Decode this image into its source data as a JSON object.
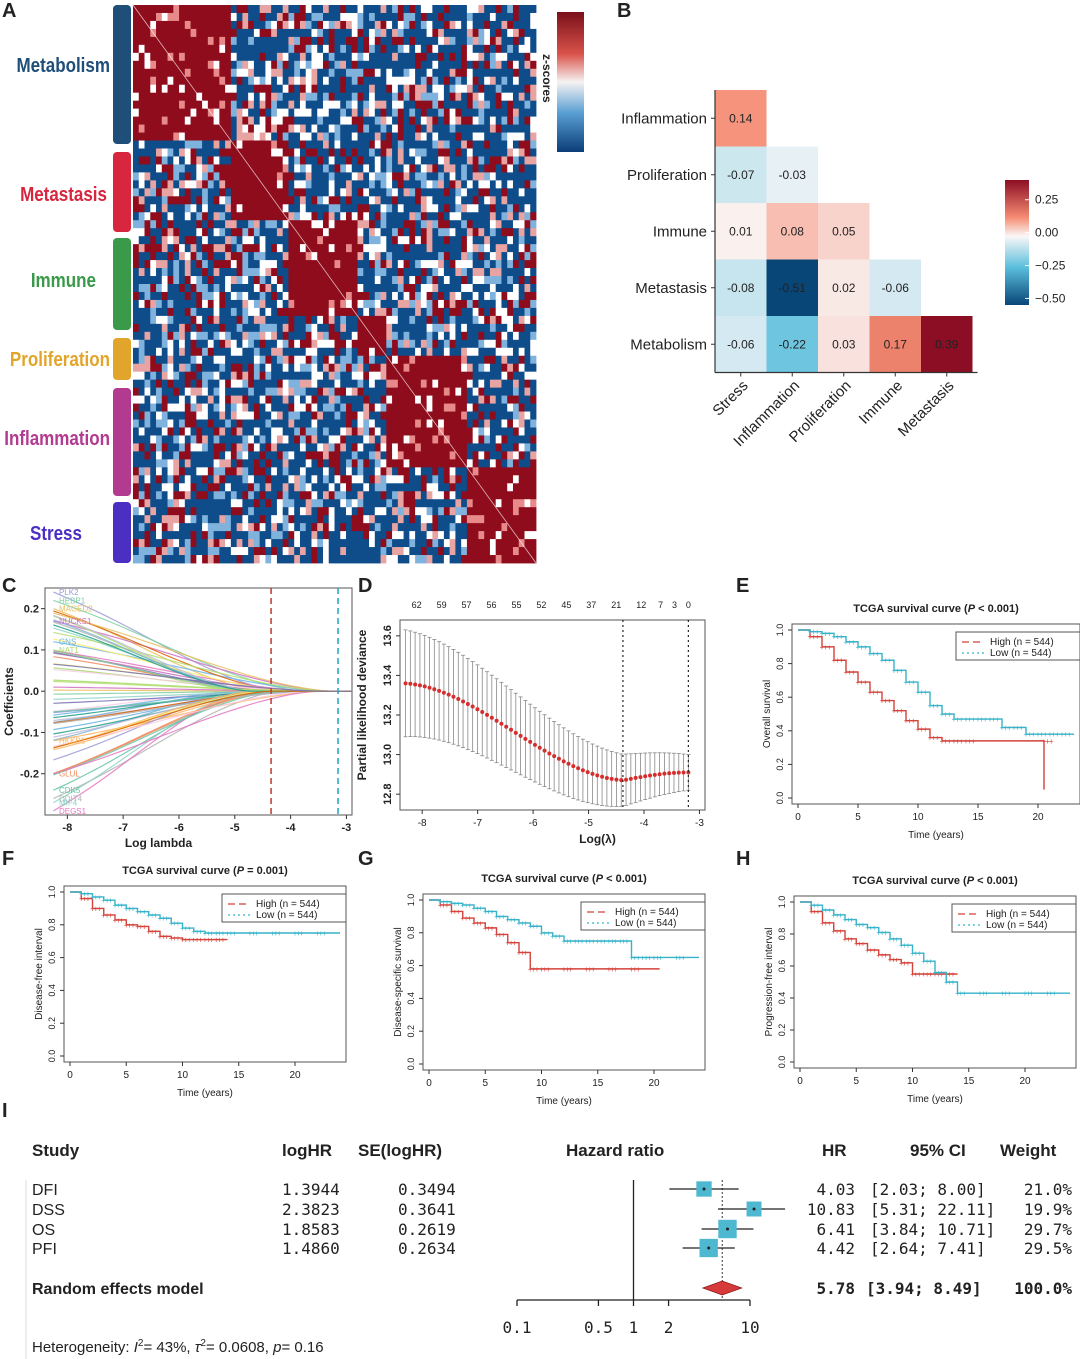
{
  "panel_letters": [
    "A",
    "B",
    "C",
    "D",
    "E",
    "F",
    "G",
    "H",
    "I"
  ],
  "colors": {
    "red": "#8e0c1c",
    "blue": "#0f4c8a",
    "high_curve": "#d4423a",
    "low_curve": "#36b3c9",
    "forest_box": "#4fb8d1",
    "diamond": "#d63a3a"
  },
  "panelA": {
    "colorbar_label": "z-scores",
    "groups": [
      {
        "label": "Metabolism",
        "color": "#1f4e79"
      },
      {
        "label": "Metastasis",
        "color": "#d7263d"
      },
      {
        "label": "Immune",
        "color": "#3a9a4a"
      },
      {
        "label": "Proliferation",
        "color": "#e2a52b"
      },
      {
        "label": "Inflammation",
        "color": "#b23a8f"
      },
      {
        "label": "Stress",
        "color": "#4b2fc2"
      }
    ]
  },
  "chart_data": [
    {
      "id": "B",
      "type": "heatmap",
      "rows": [
        "Inflammation",
        "Proliferation",
        "Immune",
        "Metastasis",
        "Metabolism"
      ],
      "cols": [
        "Stress",
        "Inflammation",
        "Proliferation",
        "Immune",
        "Metastasis"
      ],
      "values": [
        [
          0.14,
          null,
          null,
          null,
          null
        ],
        [
          -0.07,
          -0.03,
          null,
          null,
          null
        ],
        [
          0.01,
          0.08,
          0.05,
          null,
          null
        ],
        [
          -0.08,
          -0.51,
          0.02,
          -0.06,
          null
        ],
        [
          -0.06,
          -0.22,
          0.03,
          0.17,
          0.39
        ]
      ],
      "value_labels": [
        [
          "0.14",
          "",
          "",
          "",
          ""
        ],
        [
          "-0.07",
          "-0.03",
          "",
          "",
          ""
        ],
        [
          "0.01",
          "0.08",
          "0.05",
          "",
          ""
        ],
        [
          "-0.08",
          "-0.51",
          "0.02",
          "-0.06",
          ""
        ],
        [
          "-0.06",
          "-0.22",
          "0.03",
          "0.17",
          "0.39"
        ]
      ],
      "legend_ticks": [
        "0.25",
        "0.00",
        "−0.25",
        "−0.50"
      ],
      "legend_values": [
        0.25,
        0,
        -0.25,
        -0.5
      ],
      "range": [
        -0.55,
        0.4
      ]
    },
    {
      "id": "C",
      "type": "line",
      "xlabel": "Log lambda",
      "ylabel": "Coefficients",
      "xlim": [
        -8.4,
        -2.9
      ],
      "ylim": [
        -0.3,
        0.25
      ],
      "xticks": [
        -8,
        -7,
        -6,
        -5,
        -4,
        -3
      ],
      "xtick_labels": [
        "-8",
        "-7",
        "-6",
        "-5",
        "-4",
        "-3"
      ],
      "yticks": [
        0.2,
        0.1,
        0.0,
        -0.1,
        -0.2
      ],
      "ytick_labels": [
        "0.2",
        "0.1",
        "0.0",
        "-0.1",
        "-0.2"
      ],
      "vlines": [
        -4.35,
        -3.15
      ],
      "series_labels": [
        "PLK2",
        "HEBP1",
        "MAGED2",
        "NUCKS1",
        "GNS",
        "NAT1",
        "GLUL",
        "CDK5",
        "DDIT4",
        "DEGS1",
        "MIF4",
        "HKKB1"
      ],
      "start_values": [
        0.24,
        0.22,
        0.2,
        0.17,
        0.12,
        0.1,
        -0.2,
        -0.24,
        -0.26,
        -0.29,
        -0.27,
        -0.12
      ]
    },
    {
      "id": "D",
      "type": "scatter",
      "xlabel": "Log(λ)",
      "ylabel": "Partial likelihood deviance",
      "xlim": [
        -8.4,
        -2.9
      ],
      "ylim": [
        12.72,
        13.68
      ],
      "xticks": [
        -8,
        -7,
        -6,
        -5,
        -4,
        -3
      ],
      "xtick_labels": [
        "-8",
        "-7",
        "-6",
        "-5",
        "-4",
        "-3"
      ],
      "yticks": [
        12.8,
        13.0,
        13.2,
        13.4,
        13.6
      ],
      "ytick_labels": [
        "12.8",
        "13.0",
        "13.2",
        "13.4",
        "13.6"
      ],
      "top_labels": [
        "62",
        "59",
        "57",
        "56",
        "55",
        "52",
        "45",
        "37",
        "21",
        "12",
        "7",
        "3",
        "0"
      ],
      "top_positions": [
        -8.1,
        -7.65,
        -7.2,
        -6.75,
        -6.3,
        -5.85,
        -5.4,
        -4.95,
        -4.5,
        -4.05,
        -3.7,
        -3.45,
        -3.2
      ],
      "vlines": [
        -4.38,
        -3.2
      ],
      "curve": {
        "x_start": -8.3,
        "x_end": -3.2,
        "y_start": 13.36,
        "y_min": 12.87,
        "x_min": -4.38,
        "y_end": 12.91,
        "err_start": 0.27,
        "err_end": 0.09
      }
    },
    {
      "id": "E",
      "type": "line",
      "title": "TCGA survival curve (",
      "title_p": "P",
      "title_suffix": " < 0.001)",
      "ylabel": "Overall survival",
      "xlabel": "Time (years)",
      "xlim": [
        0,
        23
      ],
      "ylim": [
        0,
        1.0
      ],
      "xticks": [
        0,
        5,
        10,
        15,
        20
      ],
      "yticks": [
        0.0,
        0.2,
        0.4,
        0.6,
        0.8,
        1.0
      ],
      "ytick_labels": [
        "0.0",
        "0.2",
        "0.4",
        "0.6",
        "0.8",
        "1.0"
      ],
      "legend": [
        "High (n = 544)",
        "Low  (n = 544)"
      ],
      "series": [
        {
          "name": "High (n = 544)",
          "x": [
            0,
            1,
            2,
            3,
            4,
            5,
            6,
            7,
            8,
            9,
            10,
            11,
            12,
            13,
            14,
            20.5,
            20.5
          ],
          "y": [
            1.0,
            0.96,
            0.9,
            0.82,
            0.75,
            0.69,
            0.63,
            0.58,
            0.52,
            0.46,
            0.41,
            0.36,
            0.34,
            0.34,
            0.34,
            0.34,
            0.05
          ]
        },
        {
          "name": "Low (n = 544)",
          "x": [
            0,
            1,
            2,
            3,
            4,
            5,
            6,
            7,
            8,
            9,
            10,
            11,
            12,
            13,
            14,
            15,
            16,
            17,
            18,
            19,
            20,
            21,
            22,
            23
          ],
          "y": [
            1.0,
            0.99,
            0.98,
            0.96,
            0.93,
            0.9,
            0.86,
            0.82,
            0.76,
            0.69,
            0.63,
            0.55,
            0.5,
            0.47,
            0.47,
            0.47,
            0.47,
            0.42,
            0.42,
            0.38,
            0.38,
            0.38,
            0.38,
            0.38
          ]
        }
      ]
    },
    {
      "id": "F",
      "type": "line",
      "title": "TCGA survival curve (",
      "title_p": "P",
      "title_suffix": " = 0.001)",
      "ylabel": "Disease-free interval",
      "xlabel": "Time (years)",
      "xlim": [
        0,
        24
      ],
      "ylim": [
        0,
        1.0
      ],
      "xticks": [
        0,
        5,
        10,
        15,
        20
      ],
      "yticks": [
        0.0,
        0.2,
        0.4,
        0.6,
        0.8,
        1.0
      ],
      "ytick_labels": [
        "0.0",
        "0.2",
        "0.4",
        "0.6",
        "0.8",
        "1.0"
      ],
      "legend": [
        "High (n = 544)",
        "Low  (n = 544)"
      ],
      "series": [
        {
          "name": "High (n = 544)",
          "x": [
            0,
            1,
            2,
            3,
            4,
            5,
            6,
            7,
            8,
            9,
            10,
            11,
            12,
            13,
            14
          ],
          "y": [
            1.0,
            0.96,
            0.9,
            0.86,
            0.83,
            0.8,
            0.79,
            0.76,
            0.73,
            0.72,
            0.71,
            0.71,
            0.71,
            0.71,
            0.71
          ]
        },
        {
          "name": "Low (n = 544)",
          "x": [
            0,
            1,
            2,
            3,
            4,
            5,
            6,
            7,
            8,
            9,
            10,
            11,
            12,
            13,
            14,
            16,
            18,
            20,
            22,
            24
          ],
          "y": [
            1.0,
            0.99,
            0.97,
            0.95,
            0.92,
            0.9,
            0.88,
            0.86,
            0.84,
            0.81,
            0.78,
            0.76,
            0.75,
            0.75,
            0.75,
            0.75,
            0.75,
            0.75,
            0.75,
            0.75
          ]
        }
      ]
    },
    {
      "id": "G",
      "type": "line",
      "title": "TCGA survival curve (",
      "title_p": "P",
      "title_suffix": " < 0.001)",
      "ylabel": "Disease-specific survival",
      "xlabel": "Time (years)",
      "xlim": [
        0,
        24
      ],
      "ylim": [
        0,
        1.0
      ],
      "xticks": [
        0,
        5,
        10,
        15,
        20
      ],
      "yticks": [
        0.0,
        0.2,
        0.4,
        0.6,
        0.8,
        1.0
      ],
      "ytick_labels": [
        "0.0",
        "0.2",
        "0.4",
        "0.6",
        "0.8",
        "1.0"
      ],
      "legend": [
        "High (n = 544)",
        "Low  (n = 544)"
      ],
      "series": [
        {
          "name": "High (n = 544)",
          "x": [
            0,
            1,
            2,
            3,
            4,
            5,
            6,
            7,
            8,
            9,
            10,
            12,
            14,
            16,
            18,
            20.5
          ],
          "y": [
            1.0,
            0.97,
            0.93,
            0.89,
            0.86,
            0.83,
            0.79,
            0.74,
            0.68,
            0.58,
            0.58,
            0.58,
            0.58,
            0.58,
            0.58,
            0.58
          ]
        },
        {
          "name": "Low (n = 544)",
          "x": [
            0,
            1,
            2,
            3,
            4,
            5,
            6,
            7,
            8,
            9,
            10,
            11,
            12,
            13,
            14,
            15,
            16,
            17,
            18,
            19,
            20,
            22,
            24
          ],
          "y": [
            1.0,
            0.99,
            0.98,
            0.97,
            0.95,
            0.93,
            0.9,
            0.88,
            0.86,
            0.84,
            0.8,
            0.78,
            0.75,
            0.75,
            0.75,
            0.75,
            0.75,
            0.75,
            0.65,
            0.65,
            0.65,
            0.65,
            0.65
          ]
        }
      ]
    },
    {
      "id": "H",
      "type": "line",
      "title": "TCGA survival curve (",
      "title_p": "P",
      "title_suffix": " < 0.001)",
      "ylabel": "Progression-free interval",
      "xlabel": "Time (years)",
      "xlim": [
        0,
        24
      ],
      "ylim": [
        0,
        1.0
      ],
      "xticks": [
        0,
        5,
        10,
        15,
        20
      ],
      "yticks": [
        0.0,
        0.2,
        0.4,
        0.6,
        0.8,
        1.0
      ],
      "ytick_labels": [
        "0.0",
        "0.2",
        "0.4",
        "0.6",
        "0.8",
        "1.0"
      ],
      "legend": [
        "High (n = 544)",
        "Low  (n = 544)"
      ],
      "series": [
        {
          "name": "High (n = 544)",
          "x": [
            0,
            1,
            2,
            3,
            4,
            5,
            6,
            7,
            8,
            9,
            10,
            11,
            12,
            13,
            14
          ],
          "y": [
            1.0,
            0.94,
            0.87,
            0.82,
            0.77,
            0.74,
            0.7,
            0.67,
            0.64,
            0.62,
            0.55,
            0.55,
            0.55,
            0.55,
            0.55
          ]
        },
        {
          "name": "Low (n = 544)",
          "x": [
            0,
            1,
            2,
            3,
            4,
            5,
            6,
            7,
            8,
            9,
            10,
            11,
            12,
            13,
            14,
            16,
            18,
            20,
            22,
            24
          ],
          "y": [
            1.0,
            0.98,
            0.95,
            0.92,
            0.89,
            0.86,
            0.84,
            0.81,
            0.77,
            0.73,
            0.68,
            0.63,
            0.56,
            0.5,
            0.43,
            0.43,
            0.43,
            0.43,
            0.43,
            0.43
          ]
        }
      ]
    },
    {
      "id": "I",
      "type": "table",
      "headers": {
        "study": "Study",
        "loghr": "logHR",
        "se": "SE(logHR)",
        "hr_plot": "Hazard ratio",
        "hr": "HR",
        "ci": "95% CI",
        "weight": "Weight"
      },
      "rows": [
        {
          "study": "DFI",
          "loghr": "1.3944",
          "se": "0.3494",
          "hr": "4.03",
          "ci": "[2.03;  8.00]",
          "weight": "21.0%",
          "hr_val": 4.03,
          "lo": 2.03,
          "hi": 8.0,
          "w": 21.0
        },
        {
          "study": "DSS",
          "loghr": "2.3823",
          "se": "0.3641",
          "hr": "10.83",
          "ci": "[5.31; 22.11]",
          "weight": "19.9%",
          "hr_val": 10.83,
          "lo": 5.31,
          "hi": 22.11,
          "w": 19.9
        },
        {
          "study": "OS",
          "loghr": "1.8583",
          "se": "0.2619",
          "hr": "6.41",
          "ci": "[3.84; 10.71]",
          "weight": "29.7%",
          "hr_val": 6.41,
          "lo": 3.84,
          "hi": 10.71,
          "w": 29.7
        },
        {
          "study": "PFI",
          "loghr": "1.4860",
          "se": "0.2634",
          "hr": "4.42",
          "ci": "[2.64;  7.41]",
          "weight": "29.5%",
          "hr_val": 4.42,
          "lo": 2.64,
          "hi": 7.41,
          "w": 29.5
        }
      ],
      "model": {
        "label": "Random effects model",
        "hr": "5.78",
        "ci": "[3.94;  8.49]",
        "weight": "100.0%",
        "hr_val": 5.78,
        "lo": 3.94,
        "hi": 8.49
      },
      "axis_ticks": [
        "0.1",
        "0.5",
        "1",
        "2",
        "10"
      ],
      "axis_values": [
        0.1,
        0.5,
        1,
        2,
        10
      ],
      "heterogeneity": {
        "prefix": "Heterogeneity: ",
        "i2": "= 43%, ",
        "tau2": "= 0.0608, ",
        "p": "= 0.16"
      }
    }
  ]
}
